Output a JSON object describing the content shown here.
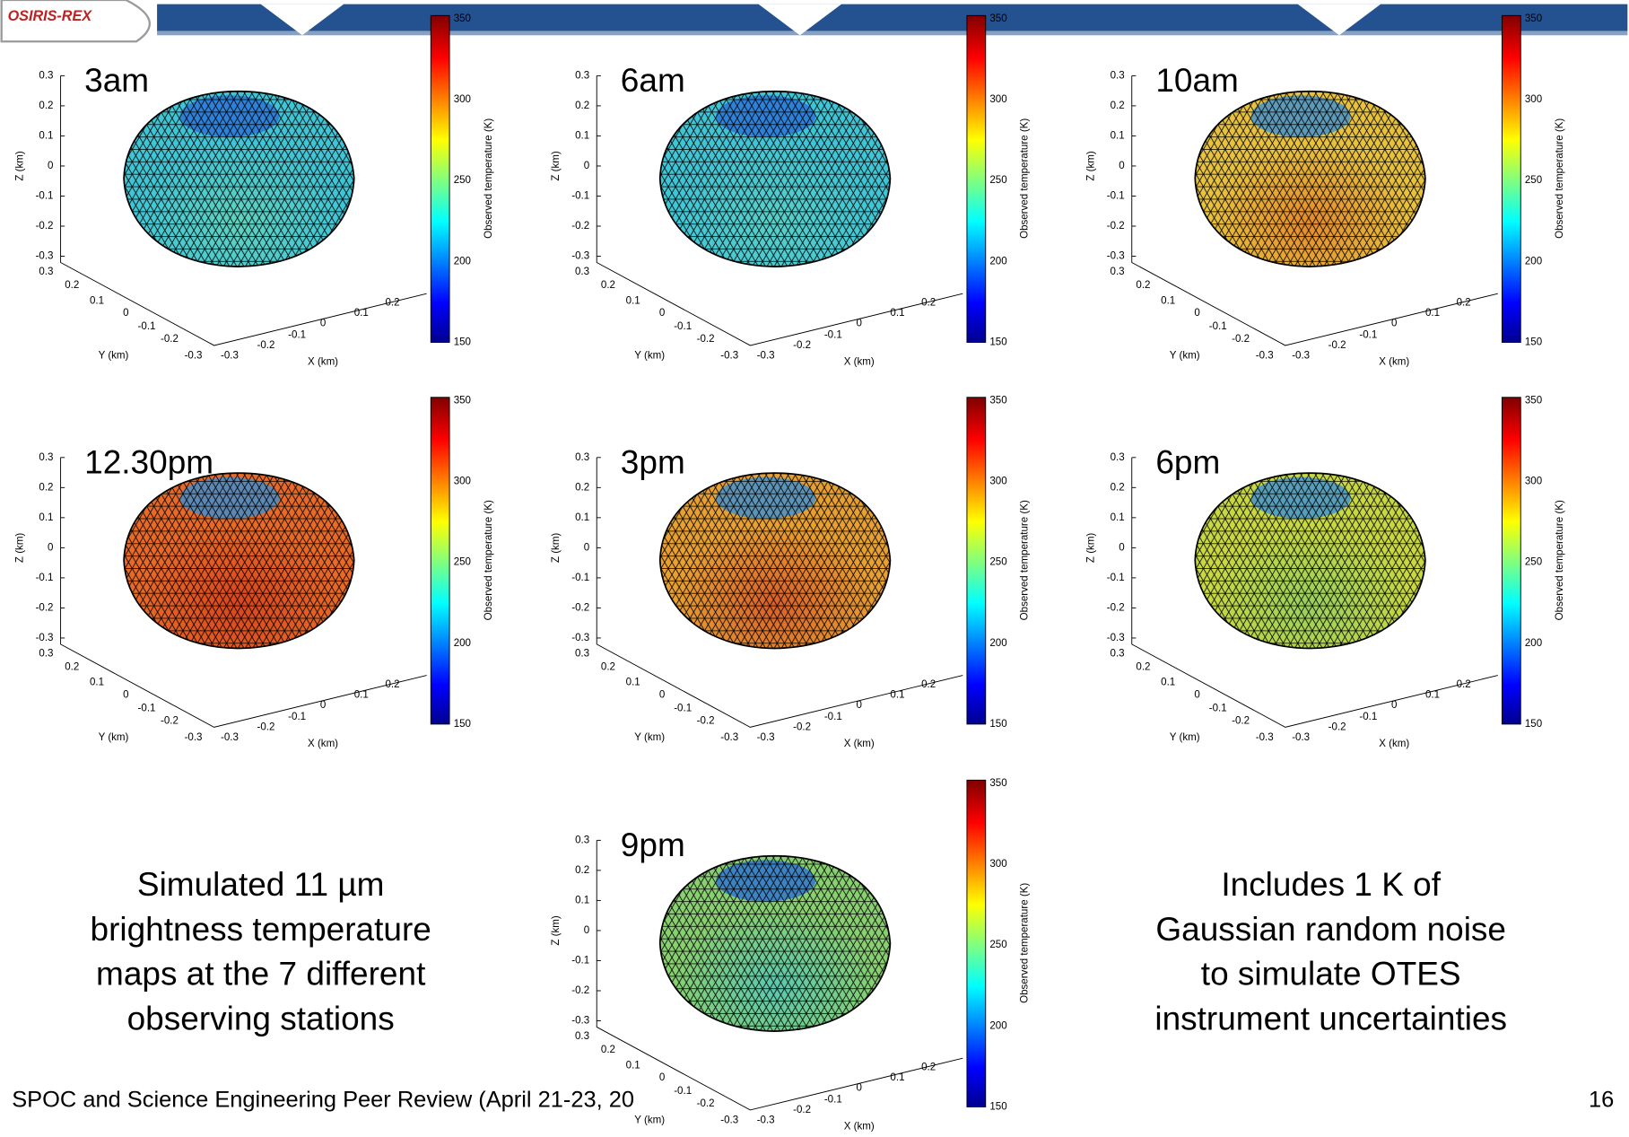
{
  "header": {
    "logo": "OSIRIS-REX"
  },
  "panels": [
    {
      "label": "3am"
    },
    {
      "label": "6am"
    },
    {
      "label": "10am"
    },
    {
      "label": "12.30pm"
    },
    {
      "label": "3pm"
    },
    {
      "label": "6pm"
    },
    {
      "label": "9pm"
    }
  ],
  "axes": {
    "z_label": "Z (km)",
    "y_label": "Y (km)",
    "x_label": "X (km)",
    "z_ticks": [
      0.3,
      0.2,
      0.1,
      0,
      -0.1,
      -0.2,
      -0.3
    ],
    "y_ticks": [
      0.3,
      0.2,
      0.1,
      0,
      -0.1,
      -0.2,
      -0.3
    ],
    "x_ticks": [
      -0.3,
      -0.2,
      -0.1,
      0,
      0.1,
      0.2
    ]
  },
  "colorbar": {
    "label": "Observed temperature (K)",
    "ticks": [
      350,
      300,
      250,
      200,
      150
    ]
  },
  "captions": {
    "left": [
      "Simulated 11 µm",
      "brightness temperature",
      "maps at the 7 different",
      "observing stations"
    ],
    "right": [
      "Includes 1 K of",
      "Gaussian random noise",
      "to simulate OTES",
      "instrument uncertainties"
    ]
  },
  "footer": {
    "text": "SPOC and Science Engineering Peer Review (April 21-23, 20",
    "page": 16
  }
}
